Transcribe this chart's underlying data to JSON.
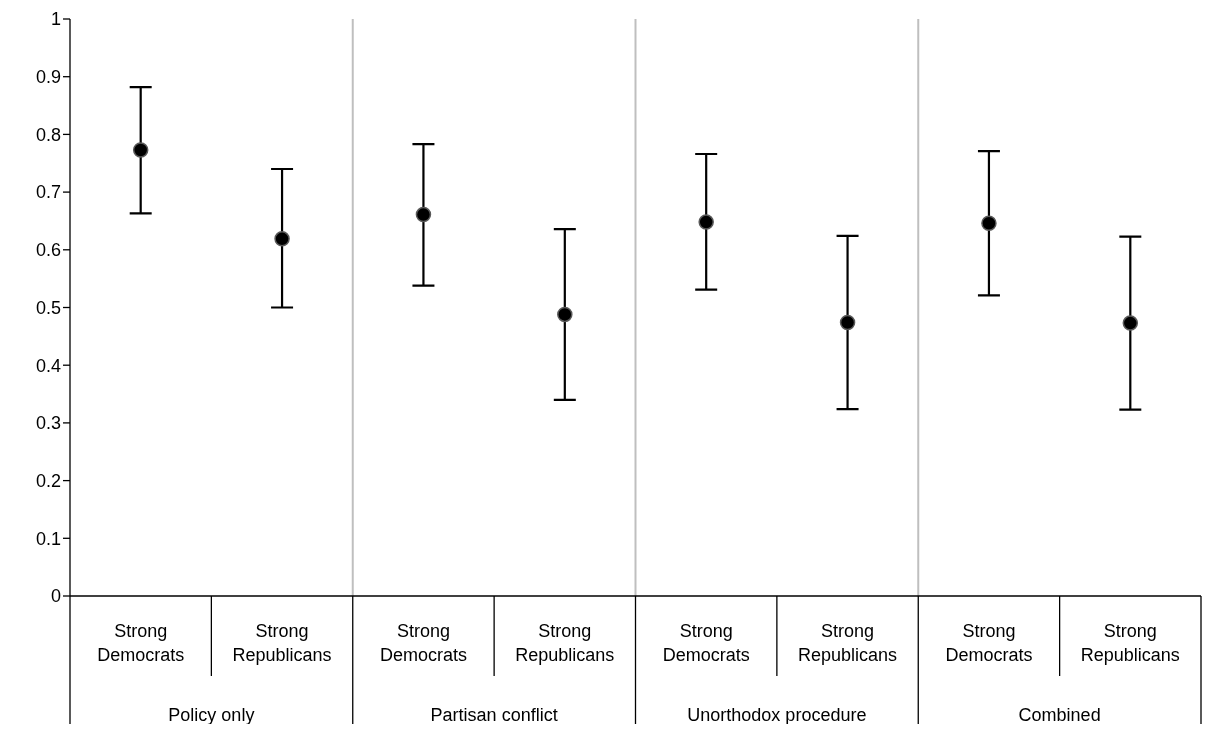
{
  "chart_data": {
    "type": "scatter",
    "categories": [
      "Strong Democrats",
      "Strong Republicans",
      "Strong Democrats",
      "Strong Republicans",
      "Strong Democrats",
      "Strong Republicans",
      "Strong Democrats",
      "Strong Republicans"
    ],
    "values": [
      0.773,
      0.619,
      0.661,
      0.488,
      0.648,
      0.474,
      0.646,
      0.473
    ],
    "errors": [
      [
        0.663,
        0.882
      ],
      [
        0.5,
        0.74
      ],
      [
        0.538,
        0.783
      ],
      [
        0.34,
        0.636
      ],
      [
        0.531,
        0.766
      ],
      [
        0.324,
        0.624
      ],
      [
        0.521,
        0.771
      ],
      [
        0.323,
        0.623
      ]
    ],
    "color": "#000000",
    "marker": "circle",
    "annotations": [
      "Policy only",
      "Partisan conflict",
      "Unorthodox procedure",
      "Combined"
    ],
    "ylim": [
      0,
      1
    ],
    "yticks": [
      0,
      0.1,
      0.2,
      0.3,
      0.4,
      0.5,
      0.6,
      0.7,
      0.8,
      0.9,
      1
    ],
    "grid": false,
    "legend": false
  }
}
